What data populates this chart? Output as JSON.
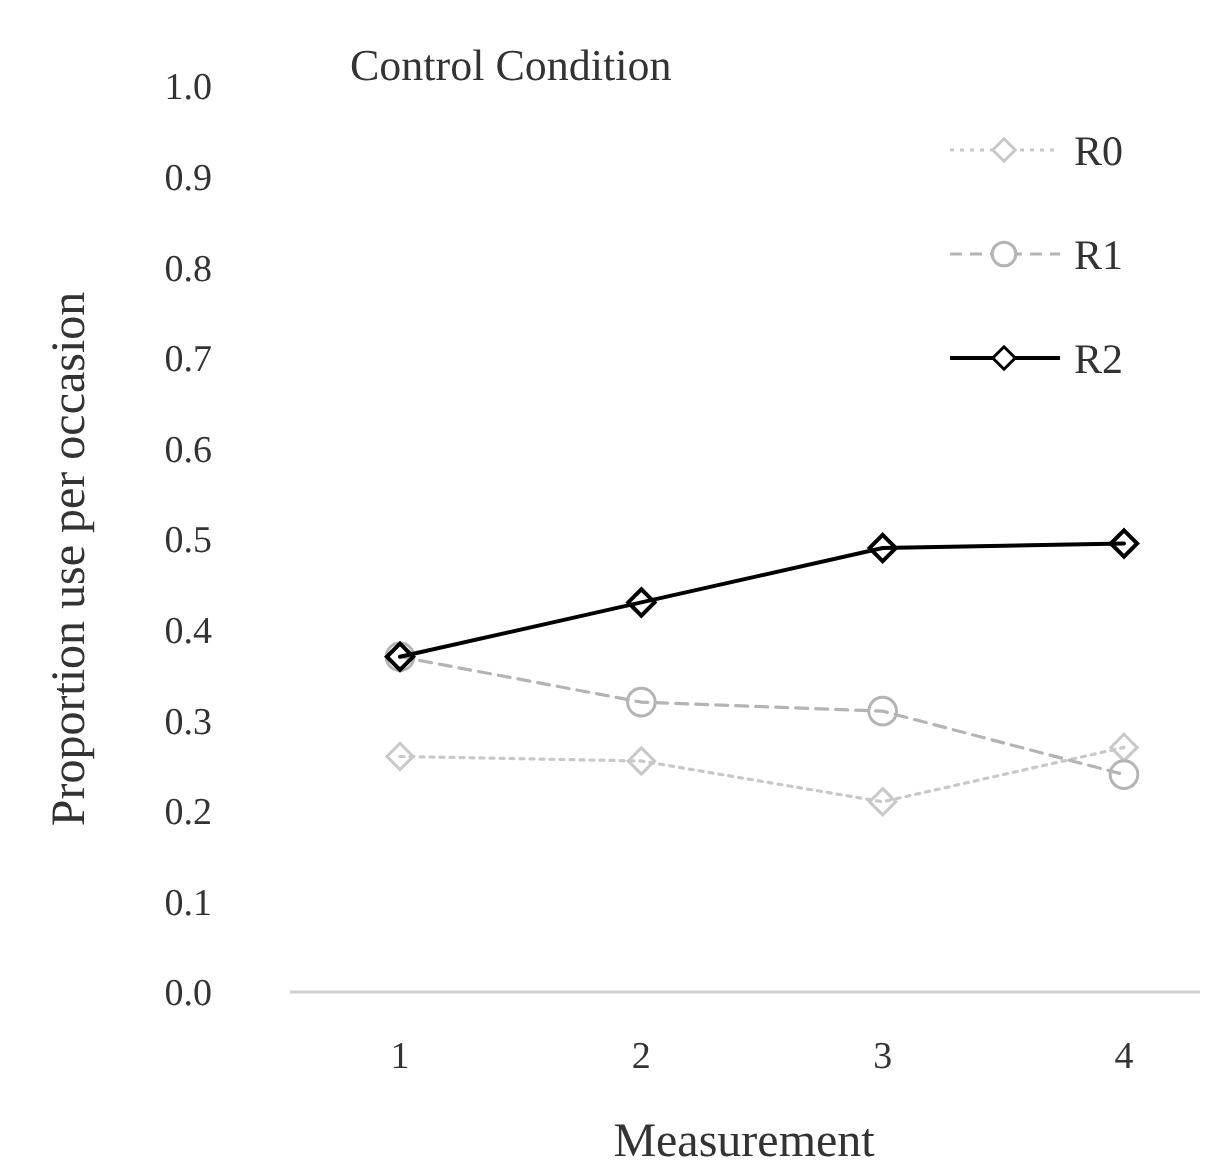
{
  "chart_data": {
    "type": "line",
    "title": "Control Condition",
    "xlabel": "Measurement",
    "ylabel": "Proportion use per occasion",
    "categories": [
      "1",
      "2",
      "3",
      "4"
    ],
    "series": [
      {
        "name": "R0",
        "color": "#c8c8c8",
        "values": [
          0.26,
          0.255,
          0.21,
          0.27
        ],
        "marker": "diamond",
        "line_style": "dotted"
      },
      {
        "name": "R1",
        "color": "#b4b4b4",
        "values": [
          0.37,
          0.32,
          0.31,
          0.24
        ],
        "marker": "circle",
        "line_style": "dashed"
      },
      {
        "name": "R2",
        "color": "#000000",
        "values": [
          0.37,
          0.43,
          0.49,
          0.495
        ],
        "marker": "diamond",
        "line_style": "solid"
      }
    ],
    "ylim": [
      0,
      1
    ],
    "yticks": [
      {
        "value": 0,
        "label": "0.0"
      },
      {
        "value": 0.1,
        "label": "0.1"
      },
      {
        "value": 0.2,
        "label": "0.2"
      },
      {
        "value": 0.3,
        "label": "0.3"
      },
      {
        "value": 0.4,
        "label": "0.4"
      },
      {
        "value": 0.5,
        "label": "0.5"
      },
      {
        "value": 0.6,
        "label": "0.6"
      },
      {
        "value": 0.7,
        "label": "0.7"
      },
      {
        "value": 0.8,
        "label": "0.8"
      },
      {
        "value": 0.9,
        "label": "0.9"
      },
      {
        "value": 1,
        "label": "1.0"
      }
    ],
    "grid": false,
    "legend": "top right"
  }
}
